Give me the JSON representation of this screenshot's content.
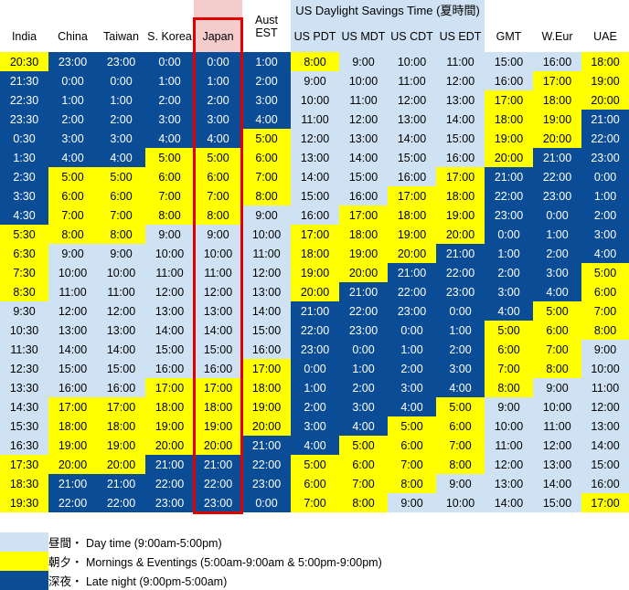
{
  "table": {
    "group_header": "US Daylight Savings Time (夏時間)",
    "columns": [
      {
        "lines": [
          "India"
        ]
      },
      {
        "lines": [
          "China"
        ]
      },
      {
        "lines": [
          "Taiwan"
        ]
      },
      {
        "lines": [
          "S. Korea"
        ]
      },
      {
        "lines": [
          "Japan"
        ]
      },
      {
        "lines": [
          "Aust",
          "EST"
        ]
      },
      {
        "lines": [
          "US PDT"
        ]
      },
      {
        "lines": [
          "US MDT"
        ]
      },
      {
        "lines": [
          "US CDT"
        ]
      },
      {
        "lines": [
          "US EDT"
        ]
      },
      {
        "lines": [
          "GMT"
        ]
      },
      {
        "lines": [
          "W.Eur"
        ]
      },
      {
        "lines": [
          "UAE"
        ]
      }
    ],
    "highlighted_column": "Japan",
    "rows": [
      [
        "20:30",
        "23:00",
        "23:00",
        "0:00",
        "0:00",
        "1:00",
        "8:00",
        "9:00",
        "10:00",
        "11:00",
        "15:00",
        "16:00",
        "18:00"
      ],
      [
        "21:30",
        "0:00",
        "0:00",
        "1:00",
        "1:00",
        "2:00",
        "9:00",
        "10:00",
        "11:00",
        "12:00",
        "16:00",
        "17:00",
        "19:00"
      ],
      [
        "22:30",
        "1:00",
        "1:00",
        "2:00",
        "2:00",
        "3:00",
        "10:00",
        "11:00",
        "12:00",
        "13:00",
        "17:00",
        "18:00",
        "20:00"
      ],
      [
        "23:30",
        "2:00",
        "2:00",
        "3:00",
        "3:00",
        "4:00",
        "11:00",
        "12:00",
        "13:00",
        "14:00",
        "18:00",
        "19:00",
        "21:00"
      ],
      [
        "0:30",
        "3:00",
        "3:00",
        "4:00",
        "4:00",
        "5:00",
        "12:00",
        "13:00",
        "14:00",
        "15:00",
        "19:00",
        "20:00",
        "22:00"
      ],
      [
        "1:30",
        "4:00",
        "4:00",
        "5:00",
        "5:00",
        "6:00",
        "13:00",
        "14:00",
        "15:00",
        "16:00",
        "20:00",
        "21:00",
        "23:00"
      ],
      [
        "2:30",
        "5:00",
        "5:00",
        "6:00",
        "6:00",
        "7:00",
        "14:00",
        "15:00",
        "16:00",
        "17:00",
        "21:00",
        "22:00",
        "0:00"
      ],
      [
        "3:30",
        "6:00",
        "6:00",
        "7:00",
        "7:00",
        "8:00",
        "15:00",
        "16:00",
        "17:00",
        "18:00",
        "22:00",
        "23:00",
        "1:00"
      ],
      [
        "4:30",
        "7:00",
        "7:00",
        "8:00",
        "8:00",
        "9:00",
        "16:00",
        "17:00",
        "18:00",
        "19:00",
        "23:00",
        "0:00",
        "2:00"
      ],
      [
        "5:30",
        "8:00",
        "8:00",
        "9:00",
        "9:00",
        "10:00",
        "17:00",
        "18:00",
        "19:00",
        "20:00",
        "0:00",
        "1:00",
        "3:00"
      ],
      [
        "6:30",
        "9:00",
        "9:00",
        "10:00",
        "10:00",
        "11:00",
        "18:00",
        "19:00",
        "20:00",
        "21:00",
        "1:00",
        "2:00",
        "4:00"
      ],
      [
        "7:30",
        "10:00",
        "10:00",
        "11:00",
        "11:00",
        "12:00",
        "19:00",
        "20:00",
        "21:00",
        "22:00",
        "2:00",
        "3:00",
        "5:00"
      ],
      [
        "8:30",
        "11:00",
        "11:00",
        "12:00",
        "12:00",
        "13:00",
        "20:00",
        "21:00",
        "22:00",
        "23:00",
        "3:00",
        "4:00",
        "6:00"
      ],
      [
        "9:30",
        "12:00",
        "12:00",
        "13:00",
        "13:00",
        "14:00",
        "21:00",
        "22:00",
        "23:00",
        "0:00",
        "4:00",
        "5:00",
        "7:00"
      ],
      [
        "10:30",
        "13:00",
        "13:00",
        "14:00",
        "14:00",
        "15:00",
        "22:00",
        "23:00",
        "0:00",
        "1:00",
        "5:00",
        "6:00",
        "8:00"
      ],
      [
        "11:30",
        "14:00",
        "14:00",
        "15:00",
        "15:00",
        "16:00",
        "23:00",
        "0:00",
        "1:00",
        "2:00",
        "6:00",
        "7:00",
        "9:00"
      ],
      [
        "12:30",
        "15:00",
        "15:00",
        "16:00",
        "16:00",
        "17:00",
        "0:00",
        "1:00",
        "2:00",
        "3:00",
        "7:00",
        "8:00",
        "10:00"
      ],
      [
        "13:30",
        "16:00",
        "16:00",
        "17:00",
        "17:00",
        "18:00",
        "1:00",
        "2:00",
        "3:00",
        "4:00",
        "8:00",
        "9:00",
        "11:00"
      ],
      [
        "14:30",
        "17:00",
        "17:00",
        "18:00",
        "18:00",
        "19:00",
        "2:00",
        "3:00",
        "4:00",
        "5:00",
        "9:00",
        "10:00",
        "12:00"
      ],
      [
        "15:30",
        "18:00",
        "18:00",
        "19:00",
        "19:00",
        "20:00",
        "3:00",
        "4:00",
        "5:00",
        "6:00",
        "10:00",
        "11:00",
        "13:00"
      ],
      [
        "16:30",
        "19:00",
        "19:00",
        "20:00",
        "20:00",
        "21:00",
        "4:00",
        "5:00",
        "6:00",
        "7:00",
        "11:00",
        "12:00",
        "14:00"
      ],
      [
        "17:30",
        "20:00",
        "20:00",
        "21:00",
        "21:00",
        "22:00",
        "5:00",
        "6:00",
        "7:00",
        "8:00",
        "12:00",
        "13:00",
        "15:00"
      ],
      [
        "18:30",
        "21:00",
        "21:00",
        "22:00",
        "22:00",
        "23:00",
        "6:00",
        "7:00",
        "8:00",
        "9:00",
        "13:00",
        "14:00",
        "16:00"
      ],
      [
        "19:30",
        "22:00",
        "22:00",
        "23:00",
        "23:00",
        "0:00",
        "7:00",
        "8:00",
        "9:00",
        "10:00",
        "14:00",
        "15:00",
        "17:00"
      ]
    ]
  },
  "legend": [
    {
      "key": "day",
      "text": "昼間・ Day time (9:00am-5:00pm)",
      "color": "#cfe2f3"
    },
    {
      "key": "morning",
      "text": "朝夕・ Mornings & Eventings (5:00am-9:00am & 5:00pm-9:00pm)",
      "color": "#ffff00"
    },
    {
      "key": "night",
      "text": "深夜・ Late night (9:00pm-5:00am)",
      "color": "#0b4c96"
    }
  ],
  "colors": {
    "day": "#cfe2f3",
    "morning": "#ffff00",
    "night": "#0b4c96",
    "japan_header": "#f4cccc",
    "highlight_border": "#e00000"
  }
}
